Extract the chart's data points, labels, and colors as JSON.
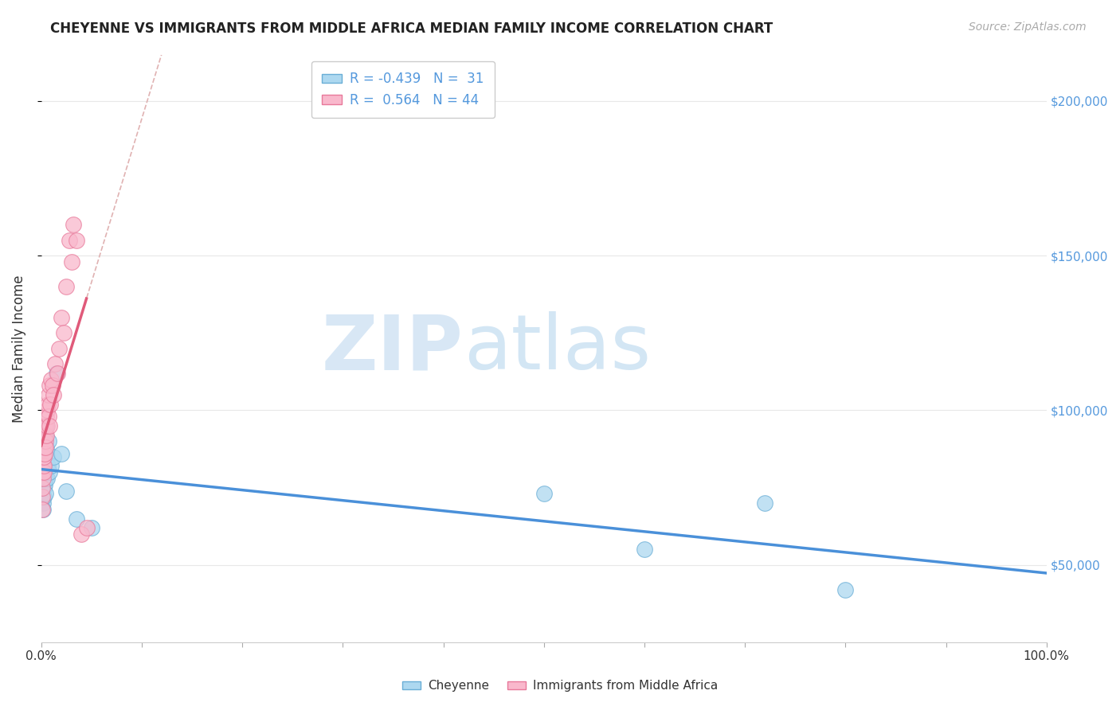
{
  "title": "CHEYENNE VS IMMIGRANTS FROM MIDDLE AFRICA MEDIAN FAMILY INCOME CORRELATION CHART",
  "source": "Source: ZipAtlas.com",
  "ylabel": "Median Family Income",
  "legend_blue_r": "-0.439",
  "legend_blue_n": "31",
  "legend_pink_r": "0.564",
  "legend_pink_n": "44",
  "watermark_zip": "ZIP",
  "watermark_atlas": "atlas",
  "blue_fill": "#add8f0",
  "pink_fill": "#f9b8cc",
  "blue_edge": "#6aaed6",
  "pink_edge": "#e8799a",
  "blue_line": "#4a90d9",
  "pink_line": "#e05a7a",
  "ref_line_color": "#ddaaaa",
  "grid_color": "#e8e8e8",
  "blue_scatter_x": [
    0.15,
    0.18,
    0.2,
    0.22,
    0.25,
    0.28,
    0.3,
    0.32,
    0.35,
    0.38,
    0.4,
    0.42,
    0.45,
    0.48,
    0.5,
    0.55,
    0.6,
    0.65,
    0.7,
    0.8,
    1.0,
    1.2,
    1.5,
    2.0,
    2.5,
    3.5,
    5.0,
    50.0,
    60.0,
    72.0,
    80.0
  ],
  "blue_scatter_y": [
    80000,
    70000,
    68000,
    75000,
    72000,
    78000,
    82000,
    76000,
    85000,
    73000,
    80000,
    92000,
    78000,
    88000,
    95000,
    85000,
    78000,
    82000,
    90000,
    80000,
    82000,
    85000,
    112000,
    86000,
    74000,
    65000,
    62000,
    73000,
    55000,
    70000,
    42000
  ],
  "pink_scatter_x": [
    0.08,
    0.1,
    0.12,
    0.15,
    0.17,
    0.19,
    0.2,
    0.22,
    0.24,
    0.25,
    0.27,
    0.28,
    0.3,
    0.32,
    0.35,
    0.37,
    0.4,
    0.42,
    0.45,
    0.48,
    0.5,
    0.55,
    0.6,
    0.65,
    0.7,
    0.75,
    0.8,
    0.85,
    0.9,
    1.0,
    1.1,
    1.2,
    1.4,
    1.6,
    1.8,
    2.0,
    2.2,
    2.5,
    2.8,
    3.0,
    3.2,
    3.5,
    4.0,
    4.5
  ],
  "pink_scatter_y": [
    72000,
    68000,
    75000,
    80000,
    82000,
    78000,
    85000,
    80000,
    88000,
    82000,
    90000,
    85000,
    88000,
    92000,
    86000,
    95000,
    90000,
    88000,
    95000,
    92000,
    98000,
    100000,
    95000,
    102000,
    98000,
    105000,
    108000,
    95000,
    102000,
    110000,
    108000,
    105000,
    115000,
    112000,
    120000,
    130000,
    125000,
    140000,
    155000,
    148000,
    160000,
    155000,
    60000,
    62000
  ],
  "xlim": [
    0,
    100
  ],
  "ylim": [
    25000,
    215000
  ],
  "xtick_positions": [
    0,
    10,
    20,
    30,
    40,
    50,
    60,
    70,
    80,
    90,
    100
  ],
  "ytick_positions": [
    50000,
    100000,
    150000,
    200000
  ],
  "ytick_labels": [
    "$50,000",
    "$100,000",
    "$150,000",
    "$200,000"
  ]
}
